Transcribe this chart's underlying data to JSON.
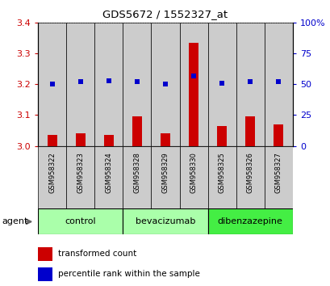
{
  "title": "GDS5672 / 1552327_at",
  "samples": [
    "GSM958322",
    "GSM958323",
    "GSM958324",
    "GSM958328",
    "GSM958329",
    "GSM958330",
    "GSM958325",
    "GSM958326",
    "GSM958327"
  ],
  "transformed_counts": [
    3.035,
    3.04,
    3.035,
    3.095,
    3.04,
    3.335,
    3.065,
    3.095,
    3.07
  ],
  "percentile_ranks": [
    50,
    52,
    53,
    52,
    50,
    57,
    51,
    52,
    52
  ],
  "bar_color": "#cc0000",
  "dot_color": "#0000cc",
  "ylim_left": [
    3.0,
    3.4
  ],
  "ylim_right": [
    0,
    100
  ],
  "yticks_left": [
    3.0,
    3.1,
    3.2,
    3.3,
    3.4
  ],
  "yticks_right": [
    0,
    25,
    50,
    75,
    100
  ],
  "ytick_labels_right": [
    "0",
    "25",
    "50",
    "75",
    "100%"
  ],
  "groups": [
    {
      "label": "control",
      "start": 0,
      "end": 3,
      "color": "#aaffaa"
    },
    {
      "label": "bevacizumab",
      "start": 3,
      "end": 6,
      "color": "#aaffaa"
    },
    {
      "label": "dibenzazepine",
      "start": 6,
      "end": 9,
      "color": "#44ee44"
    }
  ],
  "sample_bg_color": "#cccccc",
  "left_tick_color": "#cc0000",
  "right_tick_color": "#0000cc",
  "legend_bar_label": "transformed count",
  "legend_dot_label": "percentile rank within the sample",
  "agent_label": "agent",
  "background_color": "#ffffff"
}
